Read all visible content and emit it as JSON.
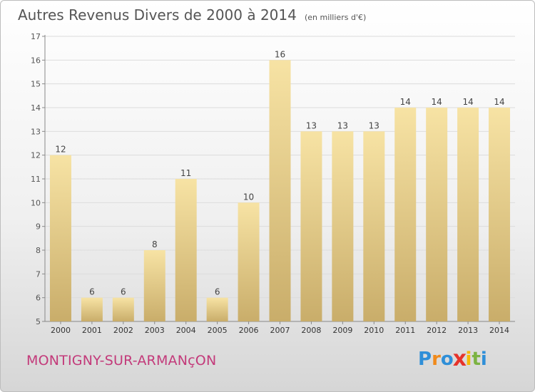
{
  "header": {
    "title": "Autres Revenus Divers de 2000 à 2014",
    "unit": "(en milliers d'€)"
  },
  "footer": {
    "town": "MONTIGNY-SUR-ARMANçON",
    "logo_letters": [
      "P",
      "r",
      "o",
      "x",
      "i",
      "t",
      "i"
    ],
    "logo_colors": [
      "#2f8fd8",
      "#f08a1c",
      "#2f8fd8",
      "#e6332a",
      "#f5b800",
      "#7cb342",
      "#2f8fd8"
    ]
  },
  "colors": {
    "bar_top": "#f7e3a4",
    "bar_bottom": "#c9ad6a",
    "town": "#c33a7a"
  },
  "chart_data": {
    "type": "bar",
    "categories": [
      "2000",
      "2001",
      "2002",
      "2003",
      "2004",
      "2005",
      "2006",
      "2007",
      "2008",
      "2009",
      "2010",
      "2011",
      "2012",
      "2013",
      "2014"
    ],
    "values": [
      12,
      6,
      6,
      8,
      11,
      6,
      10,
      16,
      13,
      13,
      13,
      14,
      14,
      14,
      14
    ],
    "ylim": [
      5,
      17
    ],
    "yticks": [
      5,
      6,
      7,
      8,
      9,
      10,
      11,
      12,
      13,
      14,
      15,
      16,
      17
    ],
    "grid": true,
    "xlabel": "",
    "ylabel": ""
  }
}
